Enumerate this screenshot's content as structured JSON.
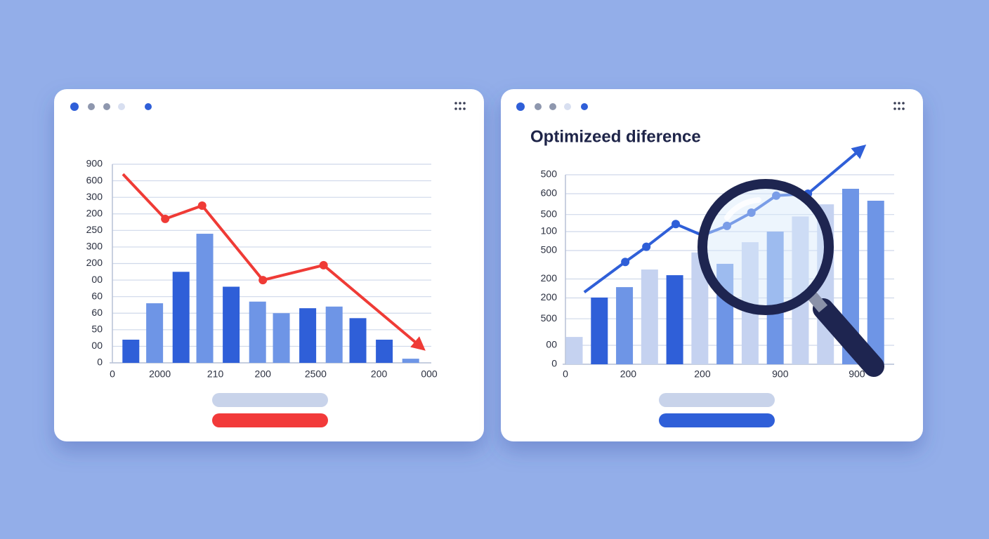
{
  "chart_data": [
    {
      "type": "combo",
      "xlim": [
        0,
        12
      ],
      "xticks": [
        0,
        {
          "value": 1.8,
          "label": "2000"
        },
        {
          "value": 3.9,
          "label": "210"
        },
        {
          "value": 5.7,
          "label": "200"
        },
        {
          "value": 7.7,
          "label": "2500"
        },
        {
          "value": 10.1,
          "label": "200"
        },
        {
          "value": 12,
          "label": "000"
        }
      ],
      "ylim": [
        0,
        12
      ],
      "yticks": [
        0,
        {
          "value": 1,
          "label": "00"
        },
        {
          "value": 2,
          "label": "50"
        },
        {
          "value": 3,
          "label": "60"
        },
        {
          "value": 4,
          "label": "60"
        },
        {
          "value": 5,
          "label": "00"
        },
        {
          "value": 6,
          "label": "200"
        },
        {
          "value": 7,
          "label": "300"
        },
        {
          "value": 8,
          "label": "250"
        },
        {
          "value": 9,
          "label": "200"
        },
        {
          "value": 10,
          "label": "300"
        },
        {
          "value": 11,
          "label": "600"
        },
        {
          "value": 12,
          "label": "900"
        }
      ],
      "grid": true,
      "series": [
        {
          "type": "bar",
          "x": [
            0.7,
            1.6,
            2.6,
            3.5,
            4.5,
            5.5,
            6.4,
            7.4,
            8.4,
            9.3,
            10.3,
            11.3
          ],
          "values": [
            1.4,
            3.6,
            5.5,
            7.8,
            4.6,
            3.7,
            3.0,
            3.3,
            3.4,
            2.7,
            1.4,
            0.25
          ],
          "colors": [
            "#2f5fd8",
            "#6e95e6",
            "#2f5fd8",
            "#6e95e6",
            "#2f5fd8",
            "#6e95e6",
            "#6e95e6",
            "#2f5fd8",
            "#6e95e6",
            "#2f5fd8",
            "#2f5fd8",
            "#6e95e6"
          ]
        },
        {
          "type": "line",
          "color": "#ef3b36",
          "x": [
            0.4,
            2.0,
            3.4,
            5.7,
            8.0,
            11.7
          ],
          "values": [
            11.4,
            8.7,
            9.5,
            5.0,
            5.9,
            0.95
          ],
          "markers": [
            false,
            true,
            true,
            true,
            true,
            false
          ],
          "arrow": true
        }
      ],
      "buttons": [
        "#c8d3ea",
        "#f23a3a"
      ]
    },
    {
      "type": "combo",
      "title": "Optimizeed diference",
      "xlim": [
        0,
        13
      ],
      "xticks": [
        0,
        {
          "value": 2.5,
          "label": "200"
        },
        {
          "value": 5.45,
          "label": "200"
        },
        {
          "value": 8.55,
          "label": "900"
        },
        {
          "value": 11.6,
          "label": "900"
        }
      ],
      "ylim": [
        0,
        10
      ],
      "yticks": [
        0,
        {
          "value": 1,
          "label": "00"
        },
        {
          "value": 2.4,
          "label": "500"
        },
        {
          "value": 3.5,
          "label": "200"
        },
        {
          "value": 4.5,
          "label": "200"
        },
        {
          "value": 6,
          "label": "500"
        },
        {
          "value": 7,
          "label": "100"
        },
        {
          "value": 7.9,
          "label": "500"
        },
        {
          "value": 9,
          "label": "600"
        },
        {
          "value": 10,
          "label": "500"
        }
      ],
      "grid": true,
      "series": [
        {
          "type": "bar",
          "x": [
            0.35,
            1.35,
            2.35,
            3.35,
            4.35,
            5.35,
            6.35,
            7.35,
            8.35,
            9.35,
            10.35,
            11.35,
            12.35
          ],
          "values": [
            1.44,
            3.52,
            4.07,
            5.0,
            4.7,
            5.9,
            5.3,
            6.44,
            7.0,
            7.8,
            8.44,
            9.26,
            8.63
          ],
          "colors": [
            "#c5d2f0",
            "#2f5fd8",
            "#6e95e6",
            "#c5d2f0",
            "#2f5fd8",
            "#c5d2f0",
            "#6e95e6",
            "#c5d2f0",
            "#6e95e6",
            "#c5d2f0",
            "#c5d2f0",
            "#6e95e6",
            "#6e95e6"
          ]
        },
        {
          "type": "line",
          "color": "#2f5fd8",
          "x": [
            0.75,
            2.38,
            3.22,
            4.39,
            5.45,
            6.43,
            7.4,
            8.39,
            9.65,
            11.8
          ],
          "values": [
            3.8,
            5.4,
            6.2,
            7.4,
            6.8,
            7.3,
            8.0,
            8.9,
            9.0,
            11.4
          ],
          "markers": [
            false,
            true,
            true,
            true,
            false,
            true,
            true,
            true,
            true,
            false
          ],
          "arrow": true
        }
      ],
      "buttons": [
        "#c8d3ea",
        "#2f5fd8"
      ]
    }
  ]
}
